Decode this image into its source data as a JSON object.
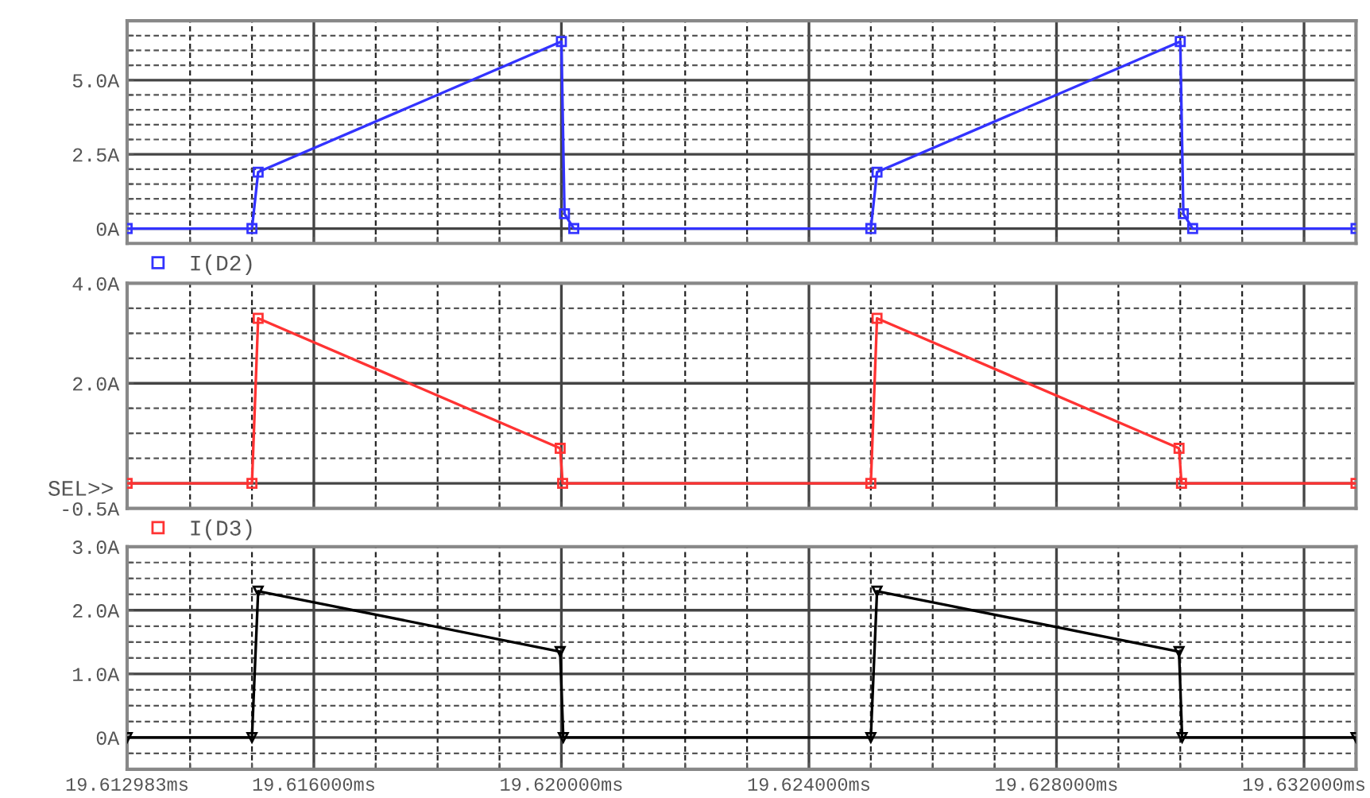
{
  "chart_data": [
    {
      "type": "line",
      "xlim": [
        19.612983,
        19.63284
      ],
      "ylim": [
        -0.5,
        7.0
      ],
      "xticks": [
        {
          "value": 19.612983,
          "label": null
        },
        {
          "value": 19.614,
          "label": null
        },
        {
          "value": 19.615,
          "label": null
        },
        {
          "value": 19.616,
          "label": null
        },
        {
          "value": 19.617,
          "label": null
        },
        {
          "value": 19.618,
          "label": null
        },
        {
          "value": 19.619,
          "label": null
        },
        {
          "value": 19.62,
          "label": null
        },
        {
          "value": 19.621,
          "label": null
        },
        {
          "value": 19.622,
          "label": null
        },
        {
          "value": 19.623,
          "label": null
        },
        {
          "value": 19.624,
          "label": null
        },
        {
          "value": 19.625,
          "label": null
        },
        {
          "value": 19.626,
          "label": null
        },
        {
          "value": 19.627,
          "label": null
        },
        {
          "value": 19.628,
          "label": null
        },
        {
          "value": 19.629,
          "label": null
        },
        {
          "value": 19.63,
          "label": null
        },
        {
          "value": 19.631,
          "label": null
        },
        {
          "value": 19.632,
          "label": null
        }
      ],
      "yticks": [
        {
          "value": 0,
          "label": "0A"
        },
        {
          "value": 0.5,
          "label": null
        },
        {
          "value": 1.0,
          "label": null
        },
        {
          "value": 1.5,
          "label": null
        },
        {
          "value": 2.0,
          "label": null
        },
        {
          "value": 2.5,
          "label": "2.5A"
        },
        {
          "value": 3.0,
          "label": null
        },
        {
          "value": 3.5,
          "label": null
        },
        {
          "value": 4.0,
          "label": null
        },
        {
          "value": 4.5,
          "label": null
        },
        {
          "value": 5.0,
          "label": "5.0A"
        },
        {
          "value": 5.5,
          "label": null
        },
        {
          "value": 6.0,
          "label": null
        },
        {
          "value": 6.5,
          "label": null
        }
      ],
      "tick_labels": "y",
      "grid": true,
      "legend": "bottom",
      "marker": "square",
      "series": [
        {
          "name": "I(D2)",
          "color": "#3333ff",
          "x": [
            19.612983,
            19.615,
            19.6151,
            19.62,
            19.62005,
            19.6202,
            19.625,
            19.6251,
            19.63,
            19.63005,
            19.6302,
            19.63284
          ],
          "values": [
            0,
            0,
            1.9,
            6.3,
            0.5,
            0,
            0,
            1.9,
            6.3,
            0.5,
            0,
            0
          ]
        }
      ]
    },
    {
      "type": "line",
      "xlim": [
        19.612983,
        19.63284
      ],
      "ylim": [
        -0.5,
        4.0
      ],
      "xticks": [
        {
          "value": 19.612983,
          "label": null
        },
        {
          "value": 19.614,
          "label": null
        },
        {
          "value": 19.615,
          "label": null
        },
        {
          "value": 19.616,
          "label": null
        },
        {
          "value": 19.617,
          "label": null
        },
        {
          "value": 19.618,
          "label": null
        },
        {
          "value": 19.619,
          "label": null
        },
        {
          "value": 19.62,
          "label": null
        },
        {
          "value": 19.621,
          "label": null
        },
        {
          "value": 19.622,
          "label": null
        },
        {
          "value": 19.623,
          "label": null
        },
        {
          "value": 19.624,
          "label": null
        },
        {
          "value": 19.625,
          "label": null
        },
        {
          "value": 19.626,
          "label": null
        },
        {
          "value": 19.627,
          "label": null
        },
        {
          "value": 19.628,
          "label": null
        },
        {
          "value": 19.629,
          "label": null
        },
        {
          "value": 19.63,
          "label": null
        },
        {
          "value": 19.631,
          "label": null
        },
        {
          "value": 19.632,
          "label": null
        }
      ],
      "yticks": [
        {
          "value": -0.5,
          "label": "-0.5A"
        },
        {
          "value": 0,
          "label": null
        },
        {
          "value": 0.5,
          "label": null
        },
        {
          "value": 1.0,
          "label": null
        },
        {
          "value": 1.5,
          "label": null
        },
        {
          "value": 2.0,
          "label": "2.0A"
        },
        {
          "value": 2.5,
          "label": null
        },
        {
          "value": 3.0,
          "label": null
        },
        {
          "value": 3.5,
          "label": null
        },
        {
          "value": 4.0,
          "label": "4.0A"
        }
      ],
      "tick_labels": "y",
      "grid": true,
      "legend": "bottom",
      "marker": "square",
      "annotations": [
        {
          "text": "SEL>>",
          "x": 19.612983,
          "y": 0
        }
      ],
      "series": [
        {
          "name": "I(D3)",
          "color": "#ff3333",
          "x": [
            19.612983,
            19.615,
            19.6151,
            19.61998,
            19.62002,
            19.625,
            19.6251,
            19.62998,
            19.63002,
            19.63284
          ],
          "values": [
            0,
            0,
            3.3,
            0.7,
            0,
            0,
            3.3,
            0.7,
            0,
            0
          ]
        }
      ]
    },
    {
      "type": "line",
      "xlim": [
        19.612983,
        19.63284
      ],
      "ylim": [
        -0.5,
        3.0
      ],
      "xticks": [
        {
          "value": 19.612983,
          "label": "19.612983ms"
        },
        {
          "value": 19.614,
          "label": null
        },
        {
          "value": 19.615,
          "label": null
        },
        {
          "value": 19.616,
          "label": "19.616000ms"
        },
        {
          "value": 19.617,
          "label": null
        },
        {
          "value": 19.618,
          "label": null
        },
        {
          "value": 19.619,
          "label": null
        },
        {
          "value": 19.62,
          "label": "19.620000ms"
        },
        {
          "value": 19.621,
          "label": null
        },
        {
          "value": 19.622,
          "label": null
        },
        {
          "value": 19.623,
          "label": null
        },
        {
          "value": 19.624,
          "label": "19.624000ms"
        },
        {
          "value": 19.625,
          "label": null
        },
        {
          "value": 19.626,
          "label": null
        },
        {
          "value": 19.627,
          "label": null
        },
        {
          "value": 19.628,
          "label": "19.628000ms"
        },
        {
          "value": 19.629,
          "label": null
        },
        {
          "value": 19.63,
          "label": null
        },
        {
          "value": 19.631,
          "label": null
        },
        {
          "value": 19.632,
          "label": "19.632000ms"
        }
      ],
      "yticks": [
        {
          "value": -0.25,
          "label": null
        },
        {
          "value": 0,
          "label": "0A"
        },
        {
          "value": 0.25,
          "label": null
        },
        {
          "value": 0.5,
          "label": null
        },
        {
          "value": 0.75,
          "label": null
        },
        {
          "value": 1.0,
          "label": "1.0A"
        },
        {
          "value": 1.25,
          "label": null
        },
        {
          "value": 1.5,
          "label": null
        },
        {
          "value": 1.75,
          "label": null
        },
        {
          "value": 2.0,
          "label": "2.0A"
        },
        {
          "value": 2.25,
          "label": null
        },
        {
          "value": 2.5,
          "label": null
        },
        {
          "value": 2.75,
          "label": null
        },
        {
          "value": 3.0,
          "label": "3.0A"
        }
      ],
      "grid": true,
      "marker": "triangle",
      "series": [
        {
          "color": "#000000",
          "x": [
            19.612983,
            19.615,
            19.6151,
            19.61998,
            19.62003,
            19.625,
            19.6251,
            19.62998,
            19.63003,
            19.63284
          ],
          "values": [
            0,
            0,
            2.3,
            1.35,
            0,
            0,
            2.3,
            1.35,
            0,
            0
          ]
        }
      ]
    }
  ]
}
